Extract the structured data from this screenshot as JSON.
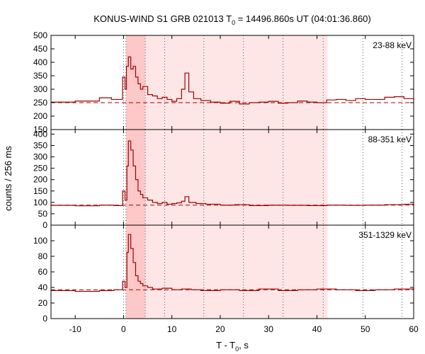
{
  "chart_data": {
    "type": "line",
    "title": "KONUS-WIND S1 GRB 021013 T",
    "title_sub": "0",
    "title_rest": " = 14496.860s UT (04:01:36.860)",
    "ylabel": "counts / 256 ms",
    "xlabel_main": "T - T",
    "xlabel_sub": "0",
    "xlabel_suffix": ", s",
    "xlim": [
      -15,
      60
    ],
    "x_ticks": [
      -10,
      0,
      10,
      20,
      30,
      40,
      50,
      60
    ],
    "x_tick_labels": [
      "-10",
      "0",
      "10",
      "20",
      "30",
      "40",
      "50",
      "60"
    ],
    "shaded_regions": [
      {
        "x0": 0.5,
        "x1": 4.5,
        "shade": "dark"
      },
      {
        "x0": 4.5,
        "x1": 42.2,
        "shade": "light"
      }
    ],
    "vertical_dotted_lines": [
      0,
      0.5,
      4.5,
      8.5,
      16.6,
      24.8,
      33.0,
      41.3,
      49.5,
      57.6
    ],
    "colors": {
      "series": "#a00000",
      "shade_dark": "#ffc8c8",
      "shade_light": "#ffe6e6",
      "axis": "#000000",
      "dotted": "#555555"
    },
    "panels": [
      {
        "label": "23-88 keV",
        "ylim": [
          150,
          500
        ],
        "y_ticks": [
          150,
          200,
          250,
          300,
          350,
          400,
          450,
          500
        ],
        "y_tick_labels": [
          "150",
          "200",
          "250",
          "300",
          "350",
          "400",
          "450",
          "500"
        ],
        "background": 250,
        "series": [
          {
            "x": -15,
            "y": 252
          },
          {
            "x": -10,
            "y": 256
          },
          {
            "x": -5,
            "y": 268
          },
          {
            "x": -2.5,
            "y": 262
          },
          {
            "x": -0.2,
            "y": 345
          },
          {
            "x": 0.3,
            "y": 300
          },
          {
            "x": 0.6,
            "y": 385
          },
          {
            "x": 1.0,
            "y": 420
          },
          {
            "x": 1.5,
            "y": 375
          },
          {
            "x": 2.0,
            "y": 385
          },
          {
            "x": 2.5,
            "y": 345
          },
          {
            "x": 3.0,
            "y": 320
          },
          {
            "x": 3.5,
            "y": 300
          },
          {
            "x": 4.0,
            "y": 310
          },
          {
            "x": 5.0,
            "y": 280
          },
          {
            "x": 6.0,
            "y": 275
          },
          {
            "x": 7.0,
            "y": 265
          },
          {
            "x": 8.0,
            "y": 270
          },
          {
            "x": 9.0,
            "y": 262
          },
          {
            "x": 10.0,
            "y": 255
          },
          {
            "x": 11.0,
            "y": 265
          },
          {
            "x": 12.0,
            "y": 300
          },
          {
            "x": 12.7,
            "y": 360
          },
          {
            "x": 13.5,
            "y": 290
          },
          {
            "x": 14.5,
            "y": 265
          },
          {
            "x": 16.0,
            "y": 258
          },
          {
            "x": 18.0,
            "y": 252
          },
          {
            "x": 20.0,
            "y": 248
          },
          {
            "x": 22.0,
            "y": 255
          },
          {
            "x": 24.0,
            "y": 245
          },
          {
            "x": 26.0,
            "y": 250
          },
          {
            "x": 28.0,
            "y": 252
          },
          {
            "x": 30.0,
            "y": 255
          },
          {
            "x": 32.0,
            "y": 248
          },
          {
            "x": 34.0,
            "y": 250
          },
          {
            "x": 36.0,
            "y": 256
          },
          {
            "x": 38.0,
            "y": 252
          },
          {
            "x": 40.0,
            "y": 250
          },
          {
            "x": 42.0,
            "y": 260
          },
          {
            "x": 44.0,
            "y": 262
          },
          {
            "x": 46.0,
            "y": 258
          },
          {
            "x": 48.0,
            "y": 265
          },
          {
            "x": 50.0,
            "y": 262
          },
          {
            "x": 52.0,
            "y": 262
          },
          {
            "x": 54.0,
            "y": 270
          },
          {
            "x": 56.0,
            "y": 272
          },
          {
            "x": 58.0,
            "y": 265
          },
          {
            "x": 60.0,
            "y": 260
          }
        ]
      },
      {
        "label": "88-351 keV",
        "ylim": [
          0,
          420
        ],
        "y_ticks": [
          0,
          50,
          100,
          150,
          200,
          250,
          300,
          350,
          400
        ],
        "y_tick_labels": [
          "0",
          "50",
          "100",
          "150",
          "200",
          "250",
          "300",
          "350",
          "400"
        ],
        "background": 88,
        "series": [
          {
            "x": -15,
            "y": 87
          },
          {
            "x": -10,
            "y": 85
          },
          {
            "x": -5,
            "y": 88
          },
          {
            "x": -2,
            "y": 86
          },
          {
            "x": -0.2,
            "y": 150
          },
          {
            "x": 0.3,
            "y": 110
          },
          {
            "x": 0.7,
            "y": 260
          },
          {
            "x": 1.0,
            "y": 370
          },
          {
            "x": 1.5,
            "y": 330
          },
          {
            "x": 2.0,
            "y": 260
          },
          {
            "x": 2.5,
            "y": 200
          },
          {
            "x": 3.0,
            "y": 150
          },
          {
            "x": 3.5,
            "y": 135
          },
          {
            "x": 4.0,
            "y": 120
          },
          {
            "x": 5.0,
            "y": 110
          },
          {
            "x": 6.0,
            "y": 100
          },
          {
            "x": 7.0,
            "y": 95
          },
          {
            "x": 8.0,
            "y": 100
          },
          {
            "x": 9.0,
            "y": 92
          },
          {
            "x": 10.0,
            "y": 95
          },
          {
            "x": 11.0,
            "y": 98
          },
          {
            "x": 12.0,
            "y": 105
          },
          {
            "x": 12.7,
            "y": 125
          },
          {
            "x": 13.5,
            "y": 100
          },
          {
            "x": 15.0,
            "y": 95
          },
          {
            "x": 17.0,
            "y": 92
          },
          {
            "x": 20.0,
            "y": 88
          },
          {
            "x": 23.0,
            "y": 90
          },
          {
            "x": 26.0,
            "y": 86
          },
          {
            "x": 30.0,
            "y": 88
          },
          {
            "x": 34.0,
            "y": 87
          },
          {
            "x": 38.0,
            "y": 86
          },
          {
            "x": 42.0,
            "y": 88
          },
          {
            "x": 46.0,
            "y": 87
          },
          {
            "x": 50.0,
            "y": 88
          },
          {
            "x": 54.0,
            "y": 90
          },
          {
            "x": 58.0,
            "y": 92
          },
          {
            "x": 60.0,
            "y": 95
          }
        ]
      },
      {
        "label": "351-1329 keV",
        "ylim": [
          0,
          120
        ],
        "y_ticks": [
          0,
          20,
          40,
          60,
          80,
          100
        ],
        "y_tick_labels": [
          "0",
          "20",
          "40",
          "60",
          "80",
          "100"
        ],
        "background": 37,
        "series": [
          {
            "x": -15,
            "y": 36
          },
          {
            "x": -10,
            "y": 35
          },
          {
            "x": -5,
            "y": 36
          },
          {
            "x": -2,
            "y": 37
          },
          {
            "x": -0.2,
            "y": 48
          },
          {
            "x": 0.3,
            "y": 40
          },
          {
            "x": 0.7,
            "y": 85
          },
          {
            "x": 1.0,
            "y": 108
          },
          {
            "x": 1.5,
            "y": 90
          },
          {
            "x": 2.0,
            "y": 72
          },
          {
            "x": 2.5,
            "y": 55
          },
          {
            "x": 3.0,
            "y": 48
          },
          {
            "x": 3.5,
            "y": 45
          },
          {
            "x": 4.0,
            "y": 42
          },
          {
            "x": 5.0,
            "y": 40
          },
          {
            "x": 6.0,
            "y": 38
          },
          {
            "x": 8.0,
            "y": 39
          },
          {
            "x": 10.0,
            "y": 37
          },
          {
            "x": 12.0,
            "y": 38
          },
          {
            "x": 14.0,
            "y": 37
          },
          {
            "x": 16.0,
            "y": 36
          },
          {
            "x": 20.0,
            "y": 37
          },
          {
            "x": 24.0,
            "y": 36
          },
          {
            "x": 28.0,
            "y": 38
          },
          {
            "x": 32.0,
            "y": 36
          },
          {
            "x": 36.0,
            "y": 37
          },
          {
            "x": 40.0,
            "y": 38
          },
          {
            "x": 44.0,
            "y": 37
          },
          {
            "x": 48.0,
            "y": 36
          },
          {
            "x": 52.0,
            "y": 37
          },
          {
            "x": 56.0,
            "y": 38
          },
          {
            "x": 60.0,
            "y": 39
          }
        ]
      }
    ]
  }
}
